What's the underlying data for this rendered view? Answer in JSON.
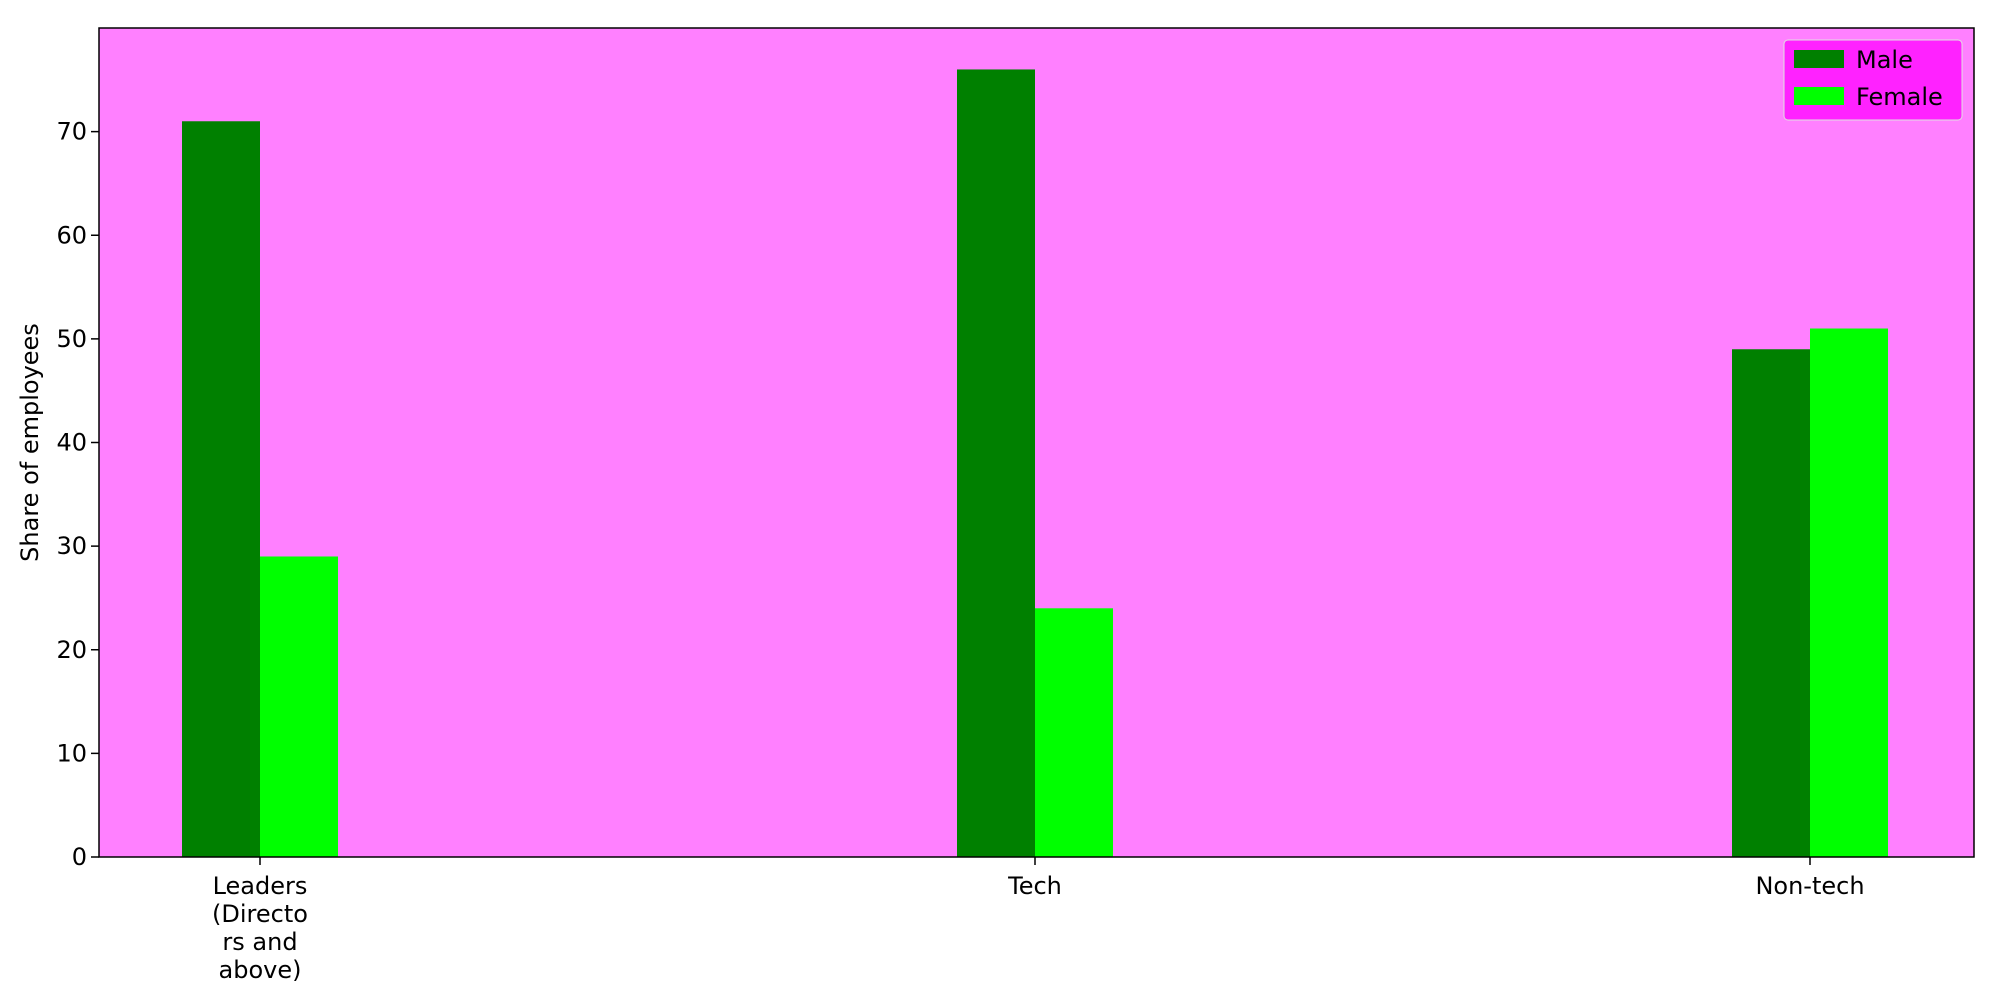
{
  "chart_data": {
    "type": "bar",
    "title": "",
    "xlabel": "",
    "ylabel": "Share of employees",
    "categories": [
      "Leaders (Directors and above)",
      "Tech",
      "Non-tech"
    ],
    "category_label_lines": [
      [
        "Leaders",
        "(Directo",
        "rs and",
        "above)"
      ],
      [
        "Tech"
      ],
      [
        "Non-tech"
      ]
    ],
    "series": [
      {
        "name": "Male",
        "values": [
          71,
          76,
          49
        ],
        "color": "#008000"
      },
      {
        "name": "Female",
        "values": [
          29,
          24,
          51
        ],
        "color": "#00ff00"
      }
    ],
    "ylim": [
      0,
      80
    ],
    "yticks": [
      0,
      10,
      20,
      30,
      40,
      50,
      60,
      70
    ],
    "grid": false,
    "legend_position": "top-right",
    "plot_background": "#ff80ff",
    "legend_background": "#ff22ff"
  }
}
